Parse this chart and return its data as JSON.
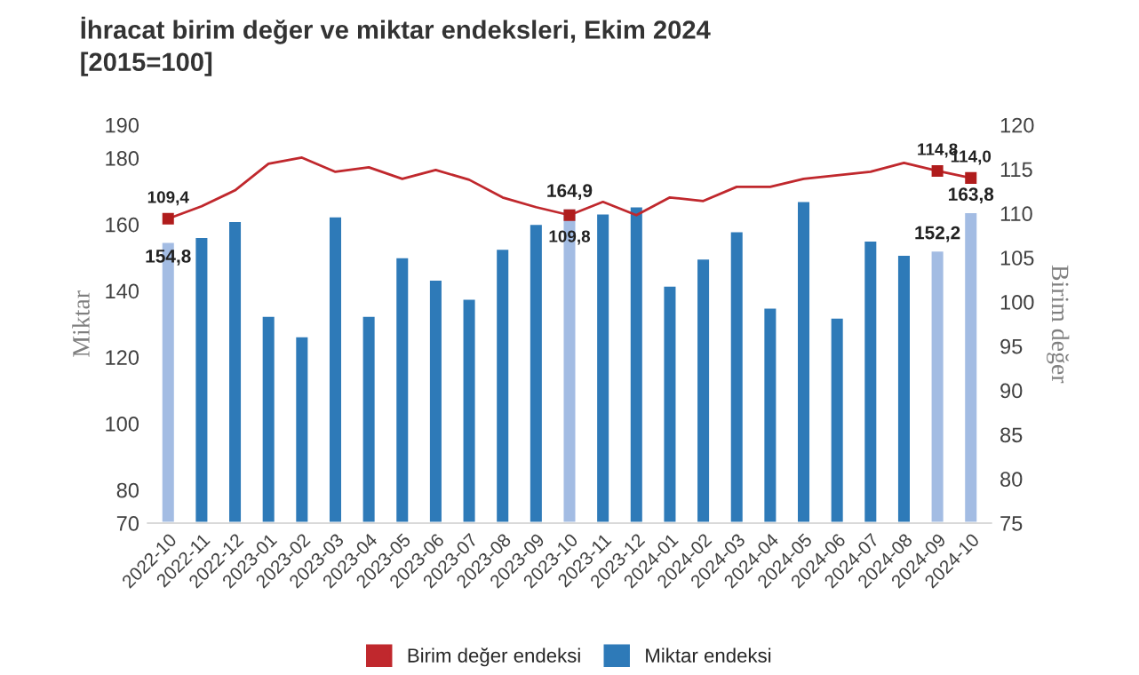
{
  "chart_data": {
    "type": "bar",
    "title": "İhracat birim değer ve miktar endeksleri, Ekim 2024",
    "subtitle": "[2015=100]",
    "ylabel": "Miktar",
    "y2label": "Birim değer",
    "categories": [
      "2022-10",
      "2022-11",
      "2022-12",
      "2023-01",
      "2023-02",
      "2023-03",
      "2023-04",
      "2023-05",
      "2023-06",
      "2023-07",
      "2023-08",
      "2023-09",
      "2023-10",
      "2023-11",
      "2023-12",
      "2024-01",
      "2024-02",
      "2024-03",
      "2024-04",
      "2024-05",
      "2024-06",
      "2024-07",
      "2024-08",
      "2024-09",
      "2024-10"
    ],
    "series": [
      {
        "name": "Birim değer endeksi",
        "type": "line",
        "axis": "y2",
        "color": "#c0282d",
        "values": [
          109.4,
          110.8,
          112.6,
          115.6,
          116.3,
          114.7,
          115.2,
          113.9,
          114.9,
          113.8,
          111.8,
          110.7,
          109.8,
          111.3,
          109.8,
          111.8,
          111.4,
          113.0,
          113.0,
          113.9,
          114.3,
          114.7,
          115.7,
          114.8,
          114.0
        ]
      },
      {
        "type": "scatter",
        "axis": "y2",
        "color": "#b01c1c",
        "marker": "square",
        "values": [
          109.4,
          null,
          null,
          null,
          null,
          null,
          null,
          null,
          null,
          null,
          null,
          null,
          109.8,
          null,
          null,
          null,
          null,
          null,
          null,
          null,
          null,
          null,
          null,
          114.8,
          114.0
        ],
        "value_labels": [
          "109,4",
          null,
          null,
          null,
          null,
          null,
          null,
          null,
          null,
          null,
          null,
          null,
          "109,8",
          null,
          null,
          null,
          null,
          null,
          null,
          null,
          null,
          null,
          null,
          "114,8",
          "114,0"
        ]
      },
      {
        "name": "Miktar endeksi",
        "color": "#2e7ab8",
        "colors": [
          "#a3bce3",
          "#2e7ab8",
          "#2e7ab8",
          "#2e7ab8",
          "#2e7ab8",
          "#2e7ab8",
          "#2e7ab8",
          "#2e7ab8",
          "#2e7ab8",
          "#2e7ab8",
          "#2e7ab8",
          "#2e7ab8",
          "#a3bce3",
          "#2e7ab8",
          "#2e7ab8",
          "#2e7ab8",
          "#2e7ab8",
          "#2e7ab8",
          "#2e7ab8",
          "#2e7ab8",
          "#2e7ab8",
          "#2e7ab8",
          "#2e7ab8",
          "#a3bce3",
          "#a3bce3"
        ],
        "values": [
          154.8,
          156.3,
          161.1,
          132.5,
          126.4,
          162.5,
          132.5,
          150.2,
          143.4,
          137.7,
          152.7,
          160.2,
          164.9,
          163.4,
          165.5,
          141.6,
          149.8,
          158.0,
          135.0,
          167.1,
          132.0,
          155.2,
          150.9,
          152.2,
          163.8
        ],
        "value_labels": [
          "154,8",
          null,
          null,
          null,
          null,
          null,
          null,
          null,
          null,
          null,
          null,
          null,
          "164,9",
          null,
          null,
          null,
          null,
          null,
          null,
          null,
          null,
          null,
          null,
          "152,2",
          "163,8"
        ]
      }
    ],
    "ylim": [
      70,
      190
    ],
    "yticks": [
      70,
      80,
      100,
      120,
      140,
      160,
      180,
      190
    ],
    "y2lim": [
      75,
      120
    ],
    "y2ticks": [
      75,
      80,
      85,
      90,
      95,
      100,
      105,
      110,
      115,
      120
    ],
    "grid": false,
    "legend": "bottom"
  }
}
